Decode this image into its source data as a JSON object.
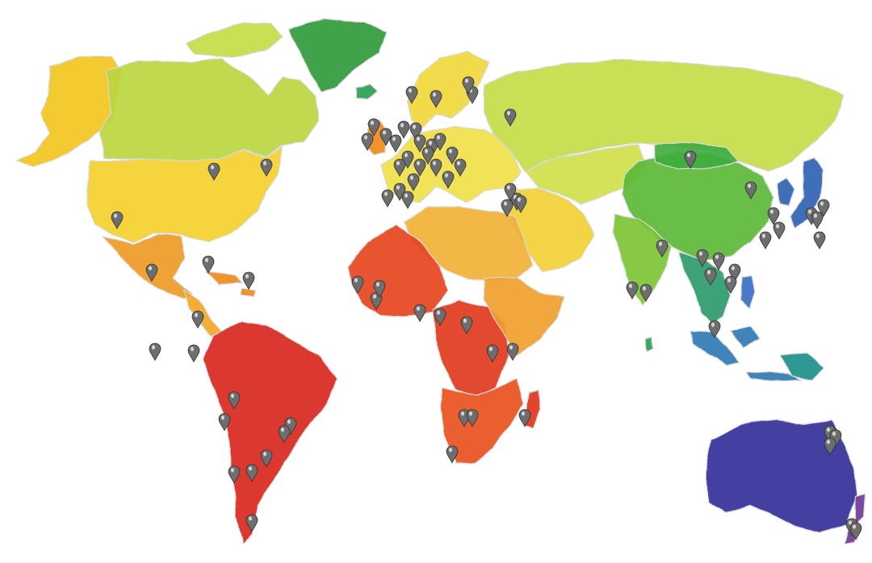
{
  "map": {
    "style": "watercolor world map",
    "background": "#ffffff",
    "palette": {
      "red": "#d8261d",
      "orange_red": "#e5451c",
      "orange": "#ee8a1f",
      "amber": "#f3a82a",
      "yellow": "#f4d02c",
      "light_yellow": "#f1e04a",
      "yellow_green": "#cfe04a",
      "light_green": "#b7d640",
      "green": "#5cb837",
      "dark_green": "#2f9a3a",
      "teal": "#1f8f8a",
      "blue": "#2f63b3",
      "indigo": "#35319a",
      "purple": "#6c3a96",
      "pin": "#6e6e6e"
    },
    "regions": [
      {
        "name": "alaska",
        "color": "#f2c61e"
      },
      {
        "name": "canada",
        "color": "#bcd63f"
      },
      {
        "name": "arctic-islands",
        "color": "#c6dc45"
      },
      {
        "name": "greenland",
        "color": "#2f9a3a"
      },
      {
        "name": "usa",
        "color": "#f4d02c"
      },
      {
        "name": "mexico",
        "color": "#ee9a24"
      },
      {
        "name": "central-america",
        "color": "#f0a828"
      },
      {
        "name": "caribbean",
        "color": "#ee8a1f"
      },
      {
        "name": "south-america",
        "color": "#d8261d"
      },
      {
        "name": "iceland",
        "color": "#2e9e52"
      },
      {
        "name": "british-isles",
        "color": "#ee8a1f"
      },
      {
        "name": "scandinavia",
        "color": "#f1d839"
      },
      {
        "name": "europe",
        "color": "#f1e04a"
      },
      {
        "name": "russia",
        "color": "#c4dc47"
      },
      {
        "name": "middle-east",
        "color": "#f2d034"
      },
      {
        "name": "central-asia",
        "color": "#cfe04a"
      },
      {
        "name": "north-africa",
        "color": "#f1b133"
      },
      {
        "name": "west-africa",
        "color": "#e5451c"
      },
      {
        "name": "central-africa",
        "color": "#df3a1d"
      },
      {
        "name": "east-africa",
        "color": "#f0a02a"
      },
      {
        "name": "southern-africa",
        "color": "#e8501c"
      },
      {
        "name": "madagascar",
        "color": "#e0341d"
      },
      {
        "name": "china",
        "color": "#5cb837"
      },
      {
        "name": "mongolia",
        "color": "#3fae3f"
      },
      {
        "name": "india",
        "color": "#7cc434"
      },
      {
        "name": "southeast-asia",
        "color": "#2d9a6a"
      },
      {
        "name": "korea-japan",
        "color": "#2f63b3"
      },
      {
        "name": "indonesia",
        "color": "#2f7ab3"
      },
      {
        "name": "philippines",
        "color": "#3a6dc0"
      },
      {
        "name": "papua",
        "color": "#1f8f8a"
      },
      {
        "name": "australia",
        "color": "#35319a"
      },
      {
        "name": "new-zealand",
        "color": "#6c3a96"
      },
      {
        "name": "sri-lanka",
        "color": "#2e9e52"
      }
    ],
    "pin_count": 84
  }
}
